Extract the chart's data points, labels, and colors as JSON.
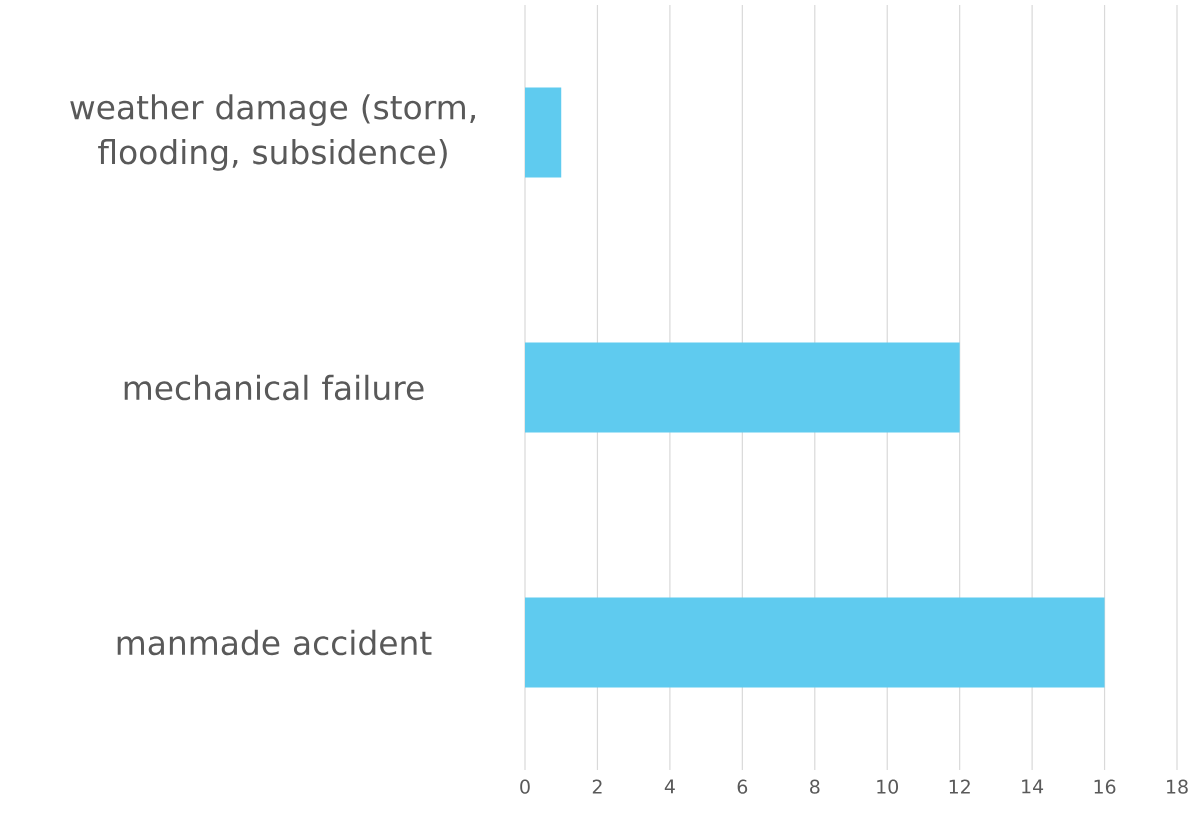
{
  "chart_data": {
    "type": "bar",
    "orientation": "horizontal",
    "categories": [
      "weather damage (storm, flooding, subsidence)",
      "mechanical failure",
      "manmade accident"
    ],
    "values": [
      1,
      12,
      16
    ],
    "color": "#5fcbef",
    "xlim": [
      0,
      18
    ],
    "xticks": [
      0,
      2,
      4,
      6,
      8,
      10,
      12,
      14,
      16,
      18
    ],
    "grid": "x"
  }
}
